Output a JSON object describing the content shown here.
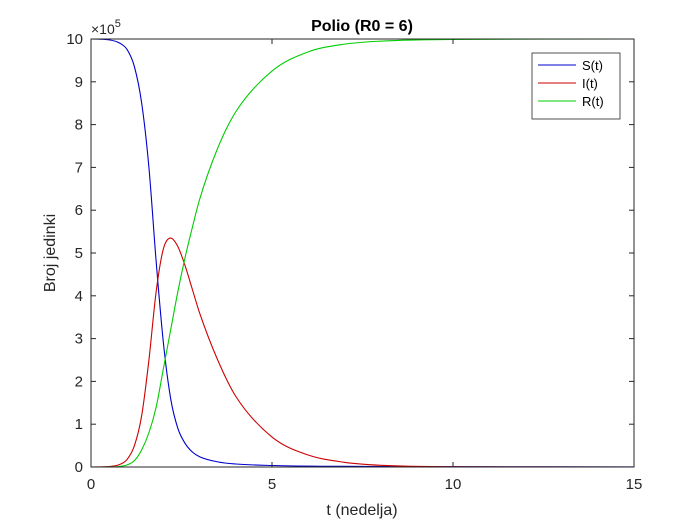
{
  "chart_data": {
    "type": "line",
    "title": "Polio (R0 = 6)",
    "xlabel": "t (nedelja)",
    "ylabel": "Broj jedinki",
    "xlim": [
      0,
      15
    ],
    "ylim": [
      0,
      1000000
    ],
    "xticks": [
      0,
      5,
      10,
      15
    ],
    "yticks": [
      0,
      1,
      2,
      3,
      4,
      5,
      6,
      7,
      8,
      9,
      10
    ],
    "y_exponent_label": "×10",
    "y_exponent_power": "5",
    "grid": false,
    "legend_position": "top-right",
    "series": [
      {
        "name": "S(t)",
        "color": "#0000cc",
        "x": [
          0,
          0.5,
          0.8,
          1.0,
          1.2,
          1.4,
          1.6,
          1.8,
          2.0,
          2.2,
          2.4,
          2.6,
          2.8,
          3.0,
          3.5,
          4.0,
          5.0,
          7.0,
          10.0,
          15.0
        ],
        "y": [
          1000000,
          998000,
          990000,
          975000,
          935000,
          850000,
          700000,
          480000,
          290000,
          160000,
          90000,
          55000,
          35000,
          24000,
          12000,
          7000,
          3500,
          1500,
          700,
          300
        ]
      },
      {
        "name": "I(t)",
        "color": "#cc0000",
        "x": [
          0,
          0.5,
          0.8,
          1.0,
          1.2,
          1.4,
          1.6,
          1.8,
          2.0,
          2.2,
          2.4,
          2.6,
          2.8,
          3.0,
          3.5,
          4.0,
          5.0,
          6.0,
          7.0,
          8.0,
          10.0,
          15.0
        ],
        "y": [
          0,
          1000,
          6000,
          18000,
          50000,
          120000,
          250000,
          410000,
          510000,
          535000,
          515000,
          470000,
          415000,
          360000,
          250000,
          165000,
          70000,
          28000,
          11000,
          4000,
          600,
          0
        ]
      },
      {
        "name": "R(t)",
        "color": "#00cc00",
        "x": [
          0,
          0.5,
          0.8,
          1.0,
          1.2,
          1.4,
          1.6,
          1.8,
          2.0,
          2.2,
          2.4,
          2.6,
          2.8,
          3.0,
          3.5,
          4.0,
          5.0,
          6.0,
          7.0,
          8.0,
          10.0,
          15.0
        ],
        "y": [
          0,
          200,
          1500,
          5000,
          15000,
          40000,
          80000,
          140000,
          230000,
          320000,
          410000,
          490000,
          560000,
          625000,
          745000,
          830000,
          925000,
          970000,
          988000,
          995000,
          999000,
          1000000
        ]
      }
    ]
  }
}
